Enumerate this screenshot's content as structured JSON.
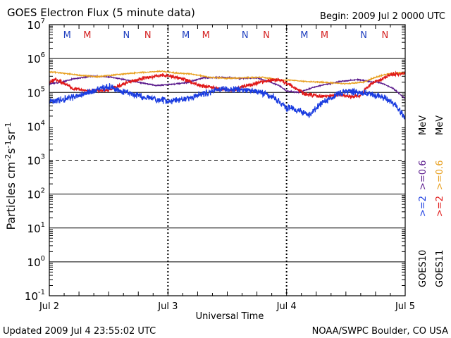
{
  "chart_data": {
    "type": "line",
    "title": "GOES Electron Flux (5 minute data)",
    "begin_label": "Begin: 2009 Jul 2 0000 UTC",
    "xlabel": "Universal Time",
    "ylabel_main": "Particles cm",
    "ylabel_sup1": "-2",
    "ylabel_s": "s",
    "ylabel_sup2": "-1",
    "ylabel_sr": "sr",
    "ylabel_sup3": "-1",
    "footer_left": "Updated 2009 Jul  4 23:55:02 UTC",
    "footer_right": "NOAA/SWPC Boulder, CO USA",
    "x_range_days": [
      0,
      3
    ],
    "x_ticks": [
      {
        "day": 0,
        "label": "Jul 2"
      },
      {
        "day": 1,
        "label": "Jul 3"
      },
      {
        "day": 2,
        "label": "Jul 4"
      },
      {
        "day": 3,
        "label": "Jul 5"
      }
    ],
    "y_scale": "log",
    "y_range_exp": [
      -1,
      7
    ],
    "y_ticks": [
      {
        "exp": 7,
        "base": "10",
        "sup": "7"
      },
      {
        "exp": 6,
        "base": "10",
        "sup": "6"
      },
      {
        "exp": 5,
        "base": "10",
        "sup": "5"
      },
      {
        "exp": 4,
        "base": "10",
        "sup": "4"
      },
      {
        "exp": 3,
        "base": "10",
        "sup": "3"
      },
      {
        "exp": 2,
        "base": "10",
        "sup": "2"
      },
      {
        "exp": 1,
        "base": "10",
        "sup": "1"
      },
      {
        "exp": 0,
        "base": "10",
        "sup": "0"
      },
      {
        "exp": -1,
        "base": "10",
        "sup": "-1"
      }
    ],
    "solid_gridlines_exp": [
      6,
      5,
      2,
      1,
      0
    ],
    "dashed_gridlines_exp": [
      3
    ],
    "mn_markers": [
      {
        "day": 0.15,
        "label": "M",
        "color": "#1f3fbf"
      },
      {
        "day": 0.32,
        "label": "M",
        "color": "#d42020"
      },
      {
        "day": 0.65,
        "label": "N",
        "color": "#1f3fbf"
      },
      {
        "day": 0.83,
        "label": "N",
        "color": "#d42020"
      },
      {
        "day": 1.15,
        "label": "M",
        "color": "#1f3fbf"
      },
      {
        "day": 1.32,
        "label": "M",
        "color": "#d42020"
      },
      {
        "day": 1.65,
        "label": "N",
        "color": "#1f3fbf"
      },
      {
        "day": 1.83,
        "label": "N",
        "color": "#d42020"
      },
      {
        "day": 2.15,
        "label": "M",
        "color": "#1f3fbf"
      },
      {
        "day": 2.32,
        "label": "M",
        "color": "#d42020"
      },
      {
        "day": 2.65,
        "label": "N",
        "color": "#1f3fbf"
      },
      {
        "day": 2.83,
        "label": "N",
        "color": "#d42020"
      }
    ],
    "legend": {
      "goes10": "GOES10",
      "goes11": "GOES11",
      "ch_2_10": ">=2",
      "ch_06_10": ">=0.6",
      "ch_2_11": ">=2",
      "ch_06_11": ">=0.6",
      "unit_10": "MeV",
      "unit_11": "MeV"
    },
    "series": [
      {
        "name": "GOES10 >=0.6 MeV",
        "color": "#5a1a8c",
        "x": [
          0,
          0.1,
          0.2,
          0.35,
          0.5,
          0.6,
          0.75,
          0.9,
          1.0,
          1.15,
          1.3,
          1.45,
          1.6,
          1.75,
          1.85,
          1.95,
          2.0,
          2.1,
          2.25,
          2.45,
          2.6,
          2.7,
          2.8,
          2.9,
          3.0
        ],
        "values": [
          180000,
          200000,
          250000,
          300000,
          290000,
          250000,
          200000,
          160000,
          170000,
          190000,
          270000,
          280000,
          260000,
          270000,
          210000,
          150000,
          110000,
          100000,
          150000,
          210000,
          240000,
          210000,
          190000,
          130000,
          65000
        ],
        "noise": 0.02
      },
      {
        "name": "GOES11 >=0.6 MeV",
        "color": "#e8a020",
        "x": [
          0,
          0.1,
          0.25,
          0.4,
          0.55,
          0.7,
          0.85,
          0.95,
          1.05,
          1.2,
          1.35,
          1.5,
          1.65,
          1.8,
          1.95,
          2.05,
          2.15,
          2.3,
          2.5,
          2.65,
          2.75,
          2.85,
          2.95,
          3.0
        ],
        "values": [
          400000,
          380000,
          320000,
          290000,
          330000,
          370000,
          400000,
          420000,
          380000,
          350000,
          280000,
          260000,
          270000,
          280000,
          230000,
          230000,
          210000,
          200000,
          180000,
          200000,
          280000,
          350000,
          380000,
          360000
        ],
        "noise": 0.02
      },
      {
        "name": "GOES11 >=2 MeV",
        "color": "#e01818",
        "x": [
          0,
          0.05,
          0.1,
          0.2,
          0.35,
          0.5,
          0.65,
          0.8,
          0.95,
          1.1,
          1.25,
          1.4,
          1.55,
          1.7,
          1.85,
          1.95,
          2.05,
          2.15,
          2.3,
          2.45,
          2.55,
          2.62,
          2.7,
          2.8,
          2.9,
          3.0
        ],
        "values": [
          200000,
          240000,
          210000,
          130000,
          110000,
          120000,
          190000,
          270000,
          320000,
          270000,
          170000,
          130000,
          120000,
          170000,
          230000,
          230000,
          150000,
          90000,
          75000,
          85000,
          75000,
          80000,
          170000,
          250000,
          350000,
          370000
        ],
        "noise": 0.07
      },
      {
        "name": "GOES10 >=2 MeV",
        "color": "#1a3ce0",
        "x": [
          0,
          0.1,
          0.25,
          0.4,
          0.5,
          0.6,
          0.75,
          0.9,
          1.0,
          1.15,
          1.3,
          1.45,
          1.6,
          1.75,
          1.9,
          2.0,
          2.1,
          2.2,
          2.3,
          2.4,
          2.5,
          2.6,
          2.7,
          2.8,
          2.9,
          2.95,
          3.0
        ],
        "values": [
          55000,
          60000,
          80000,
          120000,
          150000,
          110000,
          80000,
          60000,
          55000,
          65000,
          90000,
          130000,
          120000,
          110000,
          70000,
          35000,
          30000,
          22000,
          50000,
          80000,
          110000,
          100000,
          90000,
          75000,
          50000,
          30000,
          18000
        ],
        "noise": 0.12
      }
    ]
  }
}
